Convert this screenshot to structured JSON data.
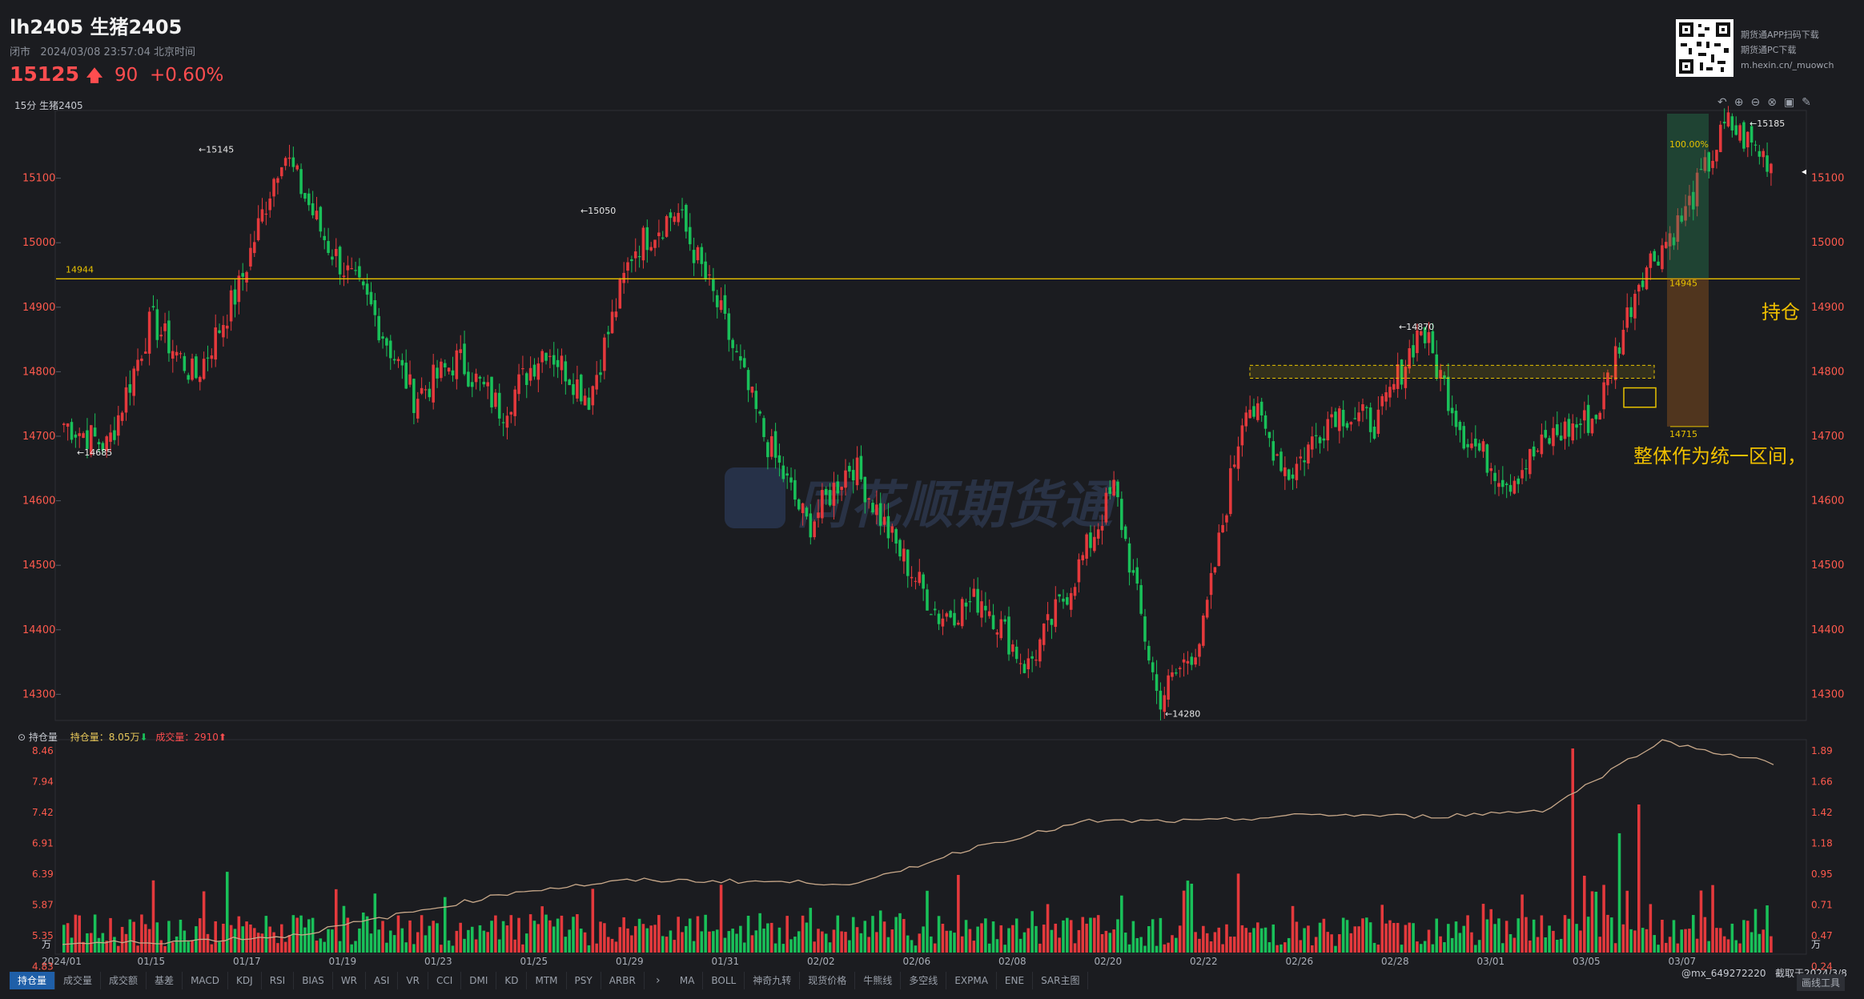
{
  "header": {
    "symbol": "lh2405",
    "name": "生猪2405",
    "status": "闭市",
    "datetime": "2024/03/08 23:57:04",
    "timezone": "北京时间",
    "last_price": "15125",
    "change": "90",
    "change_pct": "+0.60%",
    "qr_lines": [
      "期货通APP扫码下载",
      "期货通PC下载",
      "m.hexin.cn/_muowch"
    ]
  },
  "panel_label": "15分  生猪2405",
  "watermark": "同花顺期货通",
  "annotations": {
    "hline_label": "14944",
    "hold_label": "持仓",
    "range_text": "整体作为统一区间，",
    "box_top_pct": "100.00%",
    "box_mid_label": "14945",
    "box_bottom_label": "14715"
  },
  "indicator_legend": {
    "name": "持仓量",
    "oi_label": "持仓量：8.05万",
    "vol_label": "成交量：2910"
  },
  "tabs_left": [
    "持仓量",
    "成交量",
    "成交额",
    "基差",
    "MACD",
    "KDJ",
    "RSI",
    "BIAS",
    "WR",
    "ASI",
    "VR",
    "CCI",
    "DMI",
    "KD",
    "MTM",
    "PSY",
    "ARBR"
  ],
  "tabs_right": [
    "MA",
    "BOLL",
    "神奇九转",
    "现货价格",
    "牛熊线",
    "多空线",
    "EXPMA",
    "ENE",
    "SAR主图"
  ],
  "footer": {
    "user": "@mx_649272220",
    "capture": "截取于2024/3/8",
    "button": "画线工具"
  },
  "colors": {
    "up": "#e4393c",
    "down": "#19c059",
    "bg": "#1b1c20",
    "accent": "#e8c200"
  },
  "chart_data": [
    {
      "type": "candlestick",
      "title": "",
      "interval": "15分",
      "y_ticks": [
        14300,
        14400,
        14500,
        14600,
        14700,
        14800,
        14900,
        15000,
        15100
      ],
      "ylim": [
        14262,
        15200
      ],
      "x_tick_labels": [
        "2024/01",
        "01/15",
        "01/17",
        "01/19",
        "01/23",
        "01/25",
        "01/29",
        "01/31",
        "02/02",
        "02/06",
        "02/08",
        "02/20",
        "02/22",
        "02/26",
        "02/28",
        "03/01",
        "03/05",
        "03/07"
      ],
      "close_path": [
        {
          "date": "2024/01",
          "close": 14720
        },
        {
          "date": "01/02",
          "close": 14685
        },
        {
          "date": "01/04",
          "close": 14880
        },
        {
          "date": "01/09",
          "close": 14790
        },
        {
          "date": "01/12",
          "close": 14930
        },
        {
          "date": "01/15",
          "close": 15145
        },
        {
          "date": "01/16",
          "close": 15000
        },
        {
          "date": "01/17",
          "close": 14900
        },
        {
          "date": "01/18",
          "close": 14760
        },
        {
          "date": "01/19",
          "close": 14820
        },
        {
          "date": "01/22",
          "close": 14740
        },
        {
          "date": "01/23",
          "close": 14840
        },
        {
          "date": "01/24",
          "close": 14760
        },
        {
          "date": "01/25",
          "close": 14990
        },
        {
          "date": "01/26",
          "close": 15050
        },
        {
          "date": "01/29",
          "close": 14890
        },
        {
          "date": "01/30",
          "close": 14700
        },
        {
          "date": "01/31",
          "close": 14560
        },
        {
          "date": "02/01",
          "close": 14660
        },
        {
          "date": "02/02",
          "close": 14530
        },
        {
          "date": "02/05",
          "close": 14420
        },
        {
          "date": "02/06",
          "close": 14450
        },
        {
          "date": "02/07",
          "close": 14340
        },
        {
          "date": "02/08",
          "close": 14470
        },
        {
          "date": "02/19",
          "close": 14620
        },
        {
          "date": "02/20",
          "close": 14290
        },
        {
          "date": "02/21",
          "close": 14390
        },
        {
          "date": "02/22",
          "close": 14760
        },
        {
          "date": "02/23",
          "close": 14640
        },
        {
          "date": "02/26",
          "close": 14740
        },
        {
          "date": "02/27",
          "close": 14720
        },
        {
          "date": "02/28",
          "close": 14870
        },
        {
          "date": "02/29",
          "close": 14700
        },
        {
          "date": "03/01",
          "close": 14630
        },
        {
          "date": "03/04",
          "close": 14700
        },
        {
          "date": "03/05",
          "close": 14730
        },
        {
          "date": "03/06",
          "close": 14950
        },
        {
          "date": "03/07",
          "close": 15040
        },
        {
          "date": "03/08",
          "close": 15185
        },
        {
          "date": "03/08",
          "close": 15125
        }
      ],
      "marked_values": [
        {
          "label": "15145",
          "value": 15145
        },
        {
          "label": "15050",
          "value": 15050
        },
        {
          "label": "14685",
          "value": 14685
        },
        {
          "label": "14870",
          "value": 14870
        },
        {
          "label": "14280",
          "value": 14280
        },
        {
          "label": "15185",
          "value": 15185
        }
      ],
      "horizontal_line": 14944
    },
    {
      "type": "bar",
      "title": "",
      "series": [
        {
          "name": "成交量",
          "values_note": "volume bars colored by candle direction"
        },
        {
          "name": "持仓量",
          "line": [
            0.08,
            0.1,
            0.15,
            0.35,
            0.55,
            0.65,
            0.64,
            0.62,
            0.95,
            1.18,
            1.18,
            1.24,
            1.22,
            1.28,
            1.9,
            1.7
          ]
        }
      ],
      "left_ticks": [
        "8.46",
        "7.94",
        "7.42",
        "6.91",
        "6.39",
        "5.87",
        "5.35",
        "4.83"
      ],
      "right_ticks": [
        "1.89",
        "1.66",
        "1.42",
        "1.18",
        "0.95",
        "0.71",
        "0.47",
        "0.24"
      ],
      "unit": "万"
    }
  ]
}
